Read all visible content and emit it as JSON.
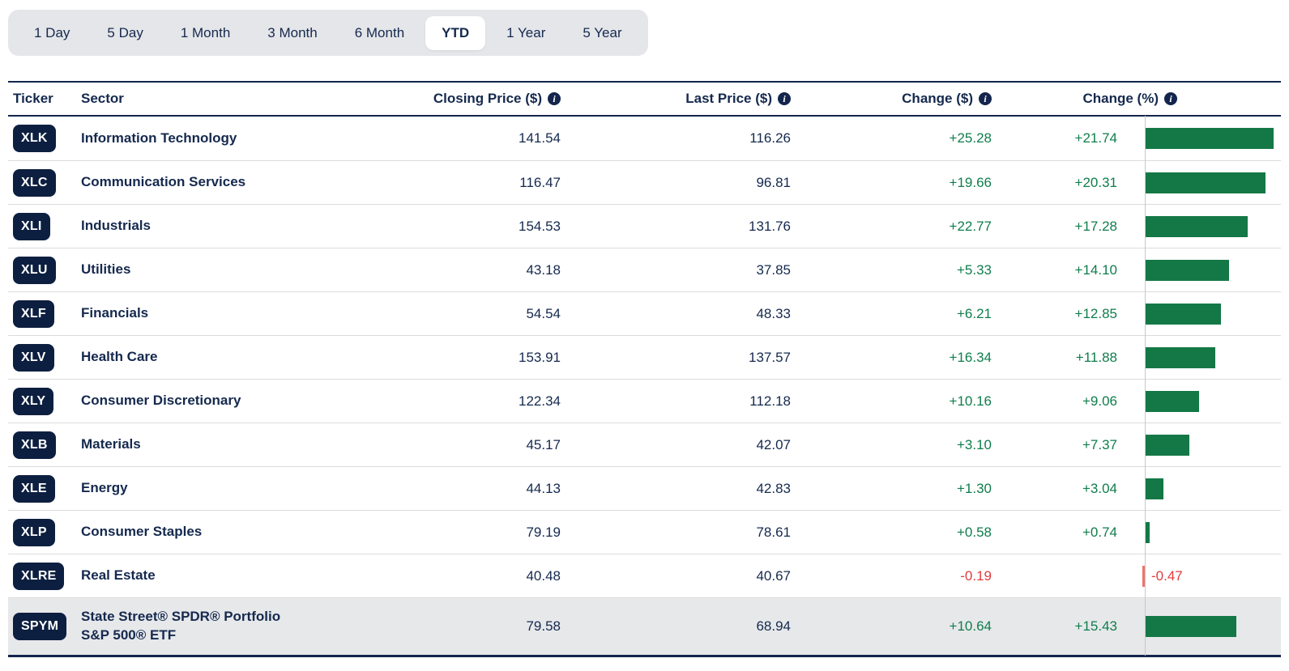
{
  "colors": {
    "navy_text": "#15294e",
    "badge_bg": "#0d1f40",
    "table_border": "#13254c",
    "green_bar": "#147846",
    "green_text": "#0f7d4c",
    "red_text": "#e13c3c",
    "red_bar": "#ed746b",
    "tab_bar_bg": "#e5e6e9",
    "selected_tab_bg": "#ffffff",
    "highlight_row_bg": "#e7e8ea",
    "row_separator": "#dcdcdc",
    "chart_axis": "#c8c8c8"
  },
  "tabs": {
    "items": [
      {
        "label": "1 Day",
        "selected": false
      },
      {
        "label": "5 Day",
        "selected": false
      },
      {
        "label": "1 Month",
        "selected": false
      },
      {
        "label": "3 Month",
        "selected": false
      },
      {
        "label": "6 Month",
        "selected": false
      },
      {
        "label": "YTD",
        "selected": true
      },
      {
        "label": "1 Year",
        "selected": false
      },
      {
        "label": "5 Year",
        "selected": false
      }
    ]
  },
  "table": {
    "headers": {
      "ticker": "Ticker",
      "sector": "Sector",
      "closing": "Closing Price ($)",
      "last": "Last Price ($)",
      "change_usd": "Change ($)",
      "change_pct": "Change (%)"
    },
    "info_icon": "i",
    "rows": [
      {
        "ticker": "XLK",
        "sector": "Information Technology",
        "closing": "141.54",
        "last": "116.26",
        "change_usd": "+25.28",
        "change_pct": "+21.74",
        "pct": 21.74,
        "highlight": false
      },
      {
        "ticker": "XLC",
        "sector": "Communication Services",
        "closing": "116.47",
        "last": "96.81",
        "change_usd": "+19.66",
        "change_pct": "+20.31",
        "pct": 20.31,
        "highlight": false
      },
      {
        "ticker": "XLI",
        "sector": "Industrials",
        "closing": "154.53",
        "last": "131.76",
        "change_usd": "+22.77",
        "change_pct": "+17.28",
        "pct": 17.28,
        "highlight": false
      },
      {
        "ticker": "XLU",
        "sector": "Utilities",
        "closing": "43.18",
        "last": "37.85",
        "change_usd": "+5.33",
        "change_pct": "+14.10",
        "pct": 14.1,
        "highlight": false
      },
      {
        "ticker": "XLF",
        "sector": "Financials",
        "closing": "54.54",
        "last": "48.33",
        "change_usd": "+6.21",
        "change_pct": "+12.85",
        "pct": 12.85,
        "highlight": false
      },
      {
        "ticker": "XLV",
        "sector": "Health Care",
        "closing": "153.91",
        "last": "137.57",
        "change_usd": "+16.34",
        "change_pct": "+11.88",
        "pct": 11.88,
        "highlight": false
      },
      {
        "ticker": "XLY",
        "sector": "Consumer Discretionary",
        "closing": "122.34",
        "last": "112.18",
        "change_usd": "+10.16",
        "change_pct": "+9.06",
        "pct": 9.06,
        "highlight": false
      },
      {
        "ticker": "XLB",
        "sector": "Materials",
        "closing": "45.17",
        "last": "42.07",
        "change_usd": "+3.10",
        "change_pct": "+7.37",
        "pct": 7.37,
        "highlight": false
      },
      {
        "ticker": "XLE",
        "sector": "Energy",
        "closing": "44.13",
        "last": "42.83",
        "change_usd": "+1.30",
        "change_pct": "+3.04",
        "pct": 3.04,
        "highlight": false
      },
      {
        "ticker": "XLP",
        "sector": "Consumer Staples",
        "closing": "79.19",
        "last": "78.61",
        "change_usd": "+0.58",
        "change_pct": "+0.74",
        "pct": 0.74,
        "highlight": false
      },
      {
        "ticker": "XLRE",
        "sector": "Real Estate",
        "closing": "40.48",
        "last": "40.67",
        "change_usd": "-0.19",
        "change_pct": "-0.47",
        "pct": -0.47,
        "highlight": false
      },
      {
        "ticker": "SPYM",
        "sector": "State Street® SPDR® Portfolio S&P 500® ETF",
        "closing": "79.58",
        "last": "68.94",
        "change_usd": "+10.64",
        "change_pct": "+15.43",
        "pct": 15.43,
        "highlight": true
      }
    ]
  },
  "chart_data": {
    "type": "bar",
    "orientation": "horizontal",
    "value_label": "Change (%)",
    "period": "YTD",
    "categories": [
      "XLK",
      "XLC",
      "XLI",
      "XLU",
      "XLF",
      "XLV",
      "XLY",
      "XLB",
      "XLE",
      "XLP",
      "XLRE",
      "SPYM"
    ],
    "values": [
      21.74,
      20.31,
      17.28,
      14.1,
      12.85,
      11.88,
      9.06,
      7.37,
      3.04,
      0.74,
      -0.47,
      15.43
    ],
    "xlim": [
      -1,
      22
    ],
    "bar_color": "#147846",
    "negative_color": "#ed746b",
    "legend": "none",
    "grid": "zero-axis-only"
  }
}
